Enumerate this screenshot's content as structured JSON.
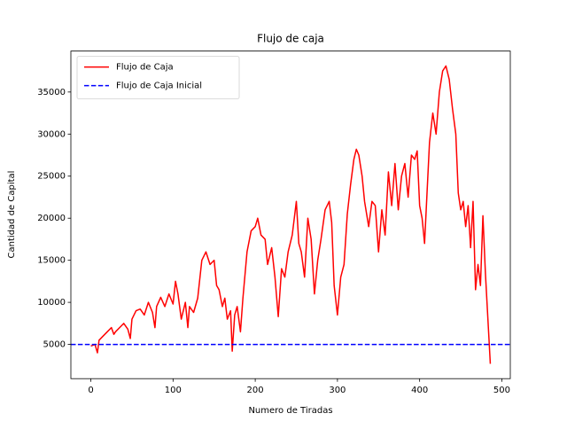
{
  "chart_data": {
    "type": "line",
    "title": "Flujo de caja",
    "x_label": "Numero de Tiradas",
    "y_label": "Cantidad de Capital",
    "xlim": [
      -24.3,
      510.3
    ],
    "ylim": [
      930,
      39870
    ],
    "xticks": [
      0,
      100,
      200,
      300,
      400,
      500
    ],
    "yticks": [
      5000,
      10000,
      15000,
      20000,
      25000,
      30000,
      35000
    ],
    "grid": false,
    "legend": "upper-left",
    "series": [
      {
        "name": "Flujo de Caja",
        "color": "#ff0000",
        "dash": false,
        "x": [
          0,
          5,
          8,
          10,
          15,
          20,
          25,
          28,
          30,
          35,
          40,
          45,
          48,
          50,
          55,
          60,
          65,
          70,
          75,
          78,
          80,
          85,
          90,
          95,
          100,
          103,
          106,
          110,
          115,
          118,
          120,
          125,
          130,
          135,
          140,
          145,
          150,
          153,
          156,
          160,
          163,
          166,
          170,
          172,
          175,
          178,
          182,
          185,
          190,
          195,
          200,
          203,
          207,
          212,
          215,
          220,
          224,
          228,
          232,
          236,
          240,
          245,
          250,
          253,
          256,
          260,
          264,
          268,
          272,
          276,
          280,
          285,
          290,
          293,
          296,
          300,
          304,
          308,
          312,
          316,
          320,
          323,
          326,
          330,
          333,
          338,
          342,
          346,
          350,
          354,
          358,
          362,
          366,
          370,
          374,
          378,
          382,
          386,
          390,
          394,
          397,
          400,
          403,
          406,
          409,
          412,
          416,
          420,
          424,
          428,
          432,
          436,
          440,
          444,
          447,
          450,
          453,
          456,
          459,
          462,
          465,
          468,
          471,
          474,
          477,
          480,
          486
        ],
        "values": [
          4800,
          5000,
          4000,
          5500,
          6000,
          6500,
          7000,
          6200,
          6500,
          7000,
          7500,
          6800,
          5700,
          8000,
          9000,
          9200,
          8500,
          10000,
          8800,
          7000,
          9500,
          10600,
          9500,
          11000,
          9800,
          12500,
          11000,
          8000,
          10000,
          7000,
          9500,
          8800,
          10500,
          15000,
          16000,
          14500,
          15000,
          12000,
          11500,
          9500,
          10500,
          8000,
          9000,
          4200,
          8500,
          9500,
          6500,
          10500,
          16000,
          18500,
          19000,
          20000,
          18000,
          17500,
          14500,
          16500,
          13000,
          8300,
          14000,
          13000,
          16000,
          18000,
          22000,
          17000,
          16000,
          13000,
          20000,
          17500,
          11000,
          15000,
          17500,
          21000,
          22000,
          19500,
          12000,
          8500,
          13000,
          14500,
          20500,
          24000,
          27000,
          28200,
          27500,
          25000,
          22000,
          19000,
          22000,
          21500,
          16000,
          21000,
          18000,
          25500,
          21500,
          26500,
          21000,
          25000,
          26500,
          22500,
          27500,
          27000,
          28000,
          21500,
          20000,
          17000,
          23000,
          29000,
          32500,
          30000,
          35000,
          37500,
          38100,
          36500,
          33000,
          30000,
          23000,
          21000,
          22000,
          19000,
          21500,
          16500,
          22000,
          11500,
          14500,
          12000,
          20300,
          13500,
          2700
        ]
      },
      {
        "name": "Flujo de Caja Inicial",
        "color": "#0000ff",
        "dash": true,
        "x": [
          -24.3,
          510.3
        ],
        "values": [
          5000,
          5000
        ]
      }
    ]
  }
}
